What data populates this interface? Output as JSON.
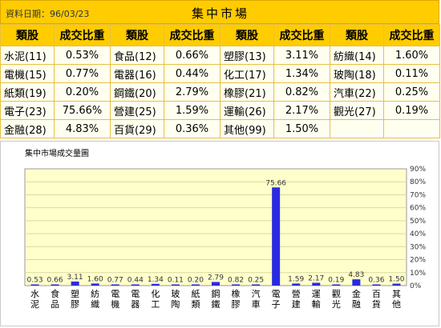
{
  "header": {
    "date_text": "資料日期：96/03/23",
    "title": "集中市場"
  },
  "table": {
    "col_headers": [
      "類股",
      "成交比重",
      "類股",
      "成交比重",
      "類股",
      "成交比重",
      "類股",
      "成交比重"
    ],
    "rows": [
      [
        [
          "水泥(11)",
          "0.53%"
        ],
        [
          "食品(12)",
          "0.66%"
        ],
        [
          "塑膠(13)",
          "3.11%"
        ],
        [
          "紡織(14)",
          "1.60%"
        ]
      ],
      [
        [
          "電機(15)",
          "0.77%"
        ],
        [
          "電器(16)",
          "0.44%"
        ],
        [
          "化工(17)",
          "1.34%"
        ],
        [
          "玻陶(18)",
          "0.11%"
        ]
      ],
      [
        [
          "紙類(19)",
          "0.20%"
        ],
        [
          "鋼鐵(20)",
          "2.79%"
        ],
        [
          "橡膠(21)",
          "0.82%"
        ],
        [
          "汽車(22)",
          "0.25%"
        ]
      ],
      [
        [
          "電子(23)",
          "75.66%"
        ],
        [
          "營建(25)",
          "1.59%"
        ],
        [
          "運輸(26)",
          "2.17%"
        ],
        [
          "觀光(27)",
          "0.19%"
        ]
      ],
      [
        [
          "金融(28)",
          "4.83%"
        ],
        [
          "百貨(29)",
          "0.36%"
        ],
        [
          "其他(99)",
          "1.50%"
        ],
        [
          "",
          ""
        ]
      ]
    ]
  },
  "chart_data": {
    "type": "bar",
    "title": "集中市場成交量圖",
    "categories": [
      "水泥",
      "食品",
      "塑膠",
      "紡織",
      "電機",
      "電器",
      "化工",
      "玻陶",
      "紙類",
      "鋼鐵",
      "橡膠",
      "汽車",
      "電子",
      "營建",
      "運輸",
      "觀光",
      "金融",
      "百貨",
      "其他"
    ],
    "values": [
      0.53,
      0.66,
      3.11,
      1.6,
      0.77,
      0.44,
      1.34,
      0.11,
      0.2,
      2.79,
      0.82,
      0.25,
      75.66,
      1.59,
      2.17,
      0.19,
      4.83,
      0.36,
      1.5
    ],
    "value_labels": [
      "0.53",
      "0.66",
      "3.11",
      "1.60",
      "0.77",
      "0.44",
      "1.34",
      "0.11",
      "0.20",
      "2.79",
      "0.82",
      "0.25",
      "75.66",
      "1.59",
      "2.17",
      "0.19",
      "4.83",
      "0.36",
      "1.50"
    ],
    "ylim": [
      0,
      90
    ],
    "yticks": [
      "0%",
      "10%",
      "20%",
      "30%",
      "40%",
      "50%",
      "60%",
      "70%",
      "80%",
      "90%"
    ],
    "y_axis_side": "right",
    "grid": true,
    "colors": {
      "bar": "#2a2ae0",
      "plot_bg": "#ffffcc",
      "grid": "#d9d9a0",
      "frame": "#999999"
    }
  }
}
